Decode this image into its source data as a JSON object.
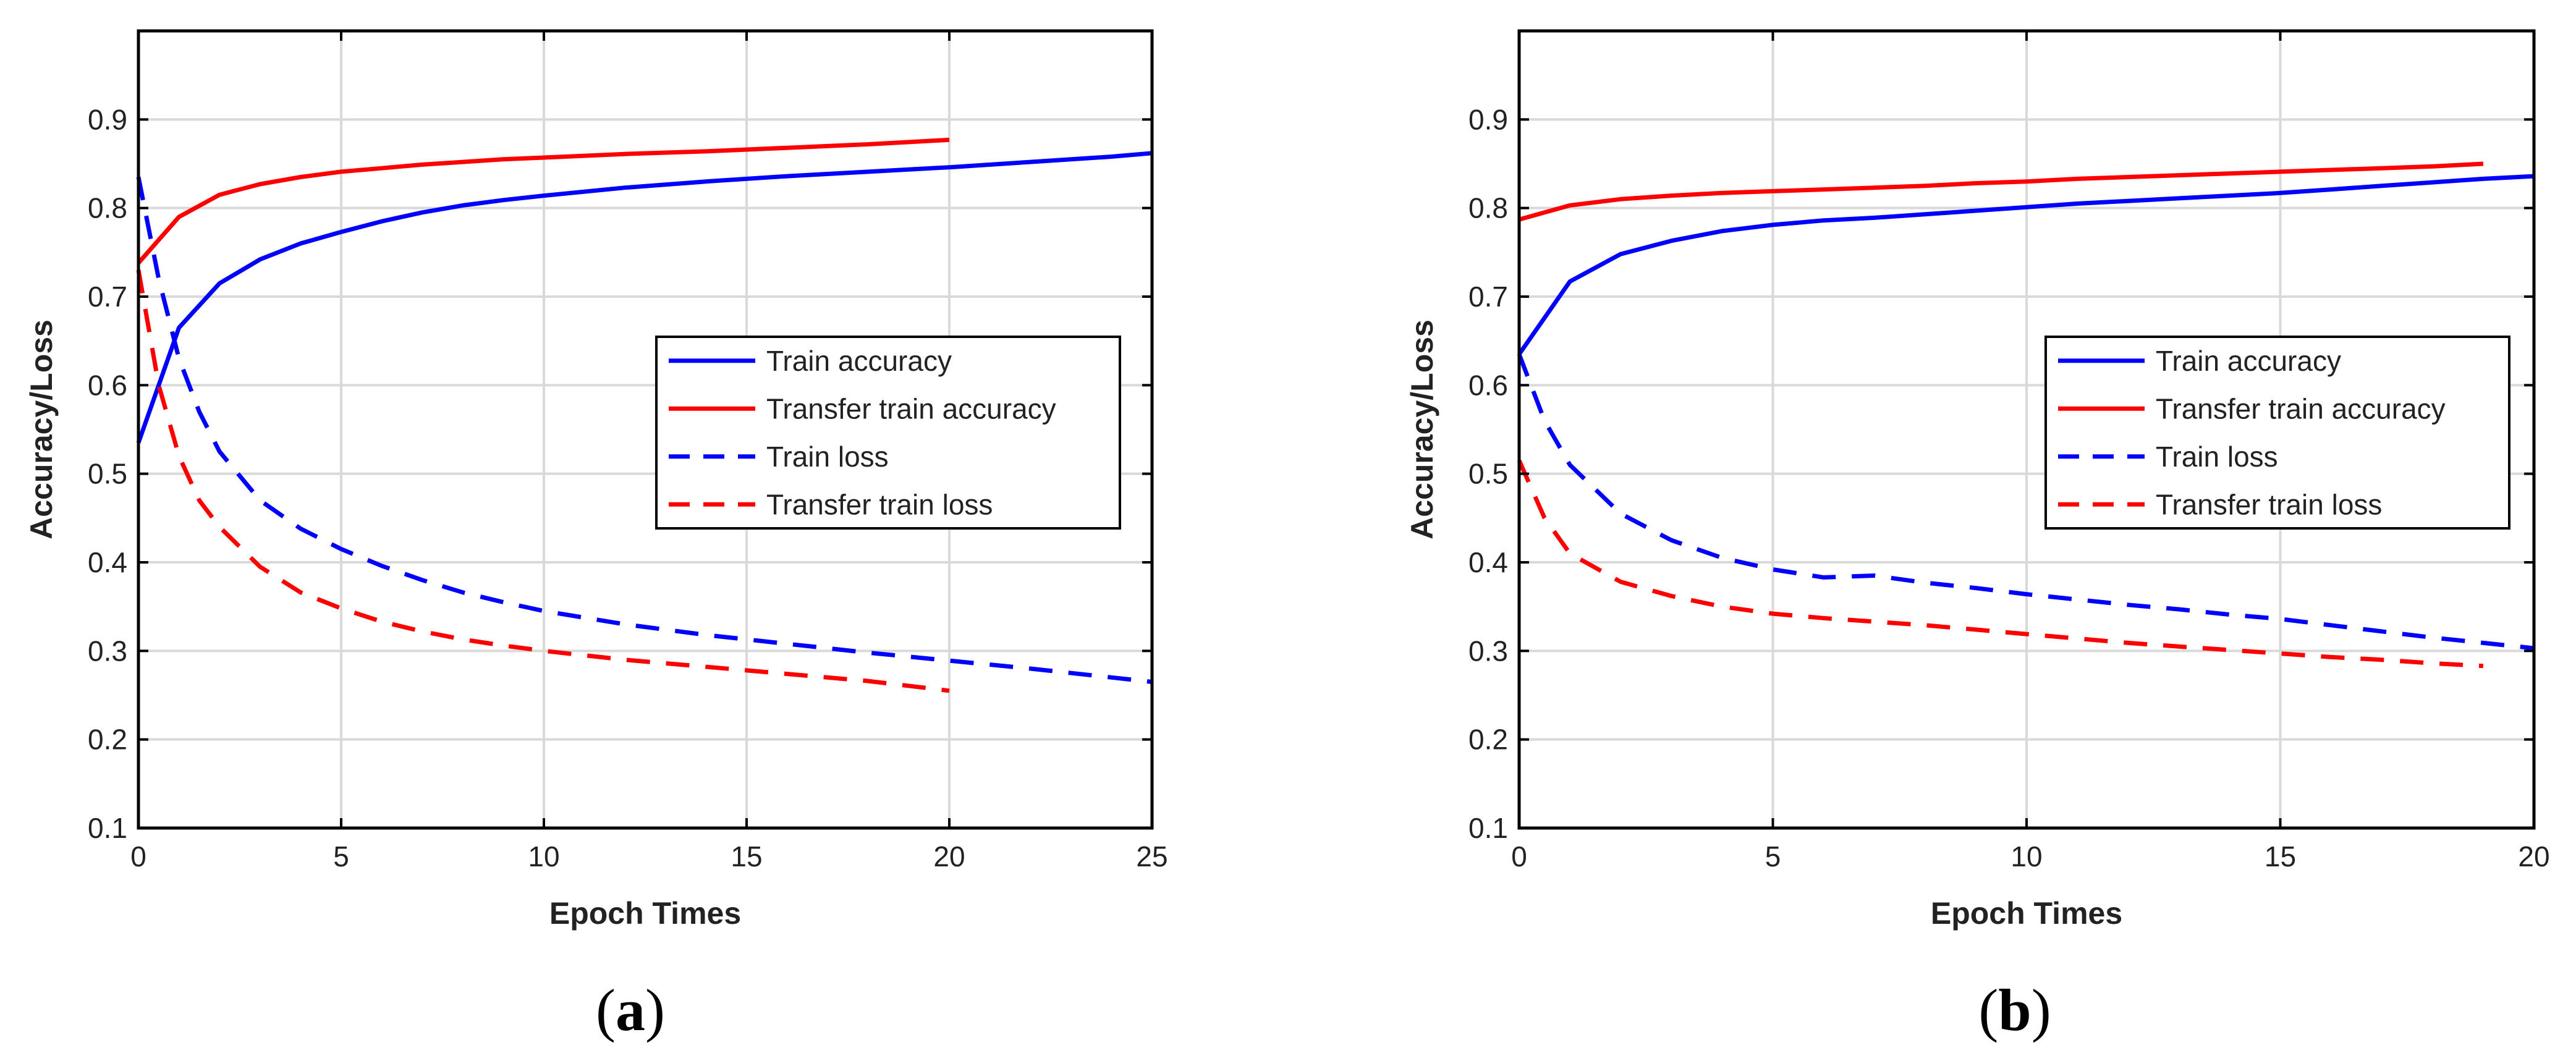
{
  "figure": {
    "captions": [
      "a",
      "b"
    ]
  },
  "colors": {
    "train": "#0000ff",
    "transfer": "#ff0000",
    "grid": "#d9d9d9",
    "axis": "#000000"
  },
  "chart_data": [
    {
      "type": "line",
      "panel": "a",
      "xlabel": "Epoch Times",
      "ylabel": "Accuracy/Loss",
      "xlim": [
        0,
        25
      ],
      "ylim": [
        0.1,
        1.0
      ],
      "xticks": [
        0,
        5,
        10,
        15,
        20,
        25
      ],
      "yticks": [
        0.1,
        0.2,
        0.3,
        0.4,
        0.5,
        0.6,
        0.7,
        0.8,
        0.9
      ],
      "grid": true,
      "legend_position": "center-right",
      "series": [
        {
          "name": "Train accuracy",
          "color": "#0000ff",
          "style": "solid",
          "x": [
            0,
            1,
            2,
            3,
            4,
            5,
            6,
            7,
            8,
            9,
            10,
            12,
            14,
            16,
            18,
            20,
            22,
            24,
            25
          ],
          "y": [
            0.535,
            0.665,
            0.715,
            0.742,
            0.76,
            0.773,
            0.785,
            0.795,
            0.803,
            0.809,
            0.814,
            0.823,
            0.83,
            0.836,
            0.841,
            0.846,
            0.852,
            0.858,
            0.862
          ]
        },
        {
          "name": "Transfer train accuracy",
          "color": "#ff0000",
          "style": "solid",
          "x": [
            0,
            1,
            2,
            3,
            4,
            5,
            6,
            7,
            8,
            9,
            10,
            12,
            14,
            16,
            18,
            20
          ],
          "y": [
            0.738,
            0.79,
            0.815,
            0.827,
            0.835,
            0.841,
            0.845,
            0.849,
            0.852,
            0.855,
            0.857,
            0.861,
            0.864,
            0.868,
            0.872,
            0.877
          ]
        },
        {
          "name": "Train loss",
          "color": "#0000ff",
          "style": "dashed",
          "x": [
            0,
            0.5,
            1,
            1.5,
            2,
            3,
            4,
            5,
            6,
            7,
            8,
            9,
            10,
            12,
            14,
            16,
            18,
            20,
            22,
            24,
            25
          ],
          "y": [
            0.835,
            0.72,
            0.63,
            0.57,
            0.525,
            0.47,
            0.438,
            0.415,
            0.396,
            0.38,
            0.366,
            0.355,
            0.345,
            0.33,
            0.318,
            0.308,
            0.298,
            0.289,
            0.28,
            0.27,
            0.265
          ]
        },
        {
          "name": "Transfer train loss",
          "color": "#ff0000",
          "style": "dashed",
          "x": [
            0,
            0.5,
            1,
            1.5,
            2,
            3,
            4,
            5,
            6,
            7,
            8,
            9,
            10,
            12,
            14,
            16,
            18,
            20
          ],
          "y": [
            0.73,
            0.6,
            0.52,
            0.47,
            0.44,
            0.395,
            0.366,
            0.348,
            0.333,
            0.322,
            0.313,
            0.306,
            0.3,
            0.29,
            0.282,
            0.274,
            0.266,
            0.255
          ]
        }
      ]
    },
    {
      "type": "line",
      "panel": "b",
      "xlabel": "Epoch Times",
      "ylabel": "Accuracy/Loss",
      "xlim": [
        0,
        20
      ],
      "ylim": [
        0.1,
        1.0
      ],
      "xticks": [
        0,
        5,
        10,
        15,
        20
      ],
      "yticks": [
        0.1,
        0.2,
        0.3,
        0.4,
        0.5,
        0.6,
        0.7,
        0.8,
        0.9
      ],
      "grid": true,
      "legend_position": "center-right",
      "series": [
        {
          "name": "Train accuracy",
          "color": "#0000ff",
          "style": "solid",
          "x": [
            0,
            1,
            2,
            3,
            4,
            5,
            6,
            7,
            8,
            9,
            10,
            11,
            12,
            13,
            14,
            15,
            16,
            17,
            18,
            19,
            20
          ],
          "y": [
            0.635,
            0.717,
            0.748,
            0.763,
            0.774,
            0.781,
            0.786,
            0.789,
            0.793,
            0.797,
            0.801,
            0.805,
            0.808,
            0.811,
            0.814,
            0.817,
            0.821,
            0.825,
            0.829,
            0.833,
            0.836
          ]
        },
        {
          "name": "Transfer train accuracy",
          "color": "#ff0000",
          "style": "solid",
          "x": [
            0,
            1,
            2,
            3,
            4,
            5,
            6,
            7,
            8,
            9,
            10,
            11,
            12,
            13,
            14,
            15,
            16,
            17,
            18,
            19
          ],
          "y": [
            0.787,
            0.803,
            0.81,
            0.814,
            0.817,
            0.819,
            0.821,
            0.823,
            0.825,
            0.828,
            0.83,
            0.833,
            0.835,
            0.837,
            0.839,
            0.841,
            0.843,
            0.845,
            0.847,
            0.85
          ]
        },
        {
          "name": "Train loss",
          "color": "#0000ff",
          "style": "dashed",
          "x": [
            0,
            0.5,
            1,
            2,
            3,
            4,
            5,
            6,
            7,
            8,
            9,
            10,
            11,
            12,
            13,
            14,
            15,
            16,
            17,
            18,
            19,
            20
          ],
          "y": [
            0.635,
            0.56,
            0.51,
            0.455,
            0.425,
            0.405,
            0.392,
            0.383,
            0.385,
            0.377,
            0.371,
            0.364,
            0.358,
            0.352,
            0.347,
            0.341,
            0.336,
            0.329,
            0.322,
            0.315,
            0.309,
            0.303
          ]
        },
        {
          "name": "Transfer train loss",
          "color": "#ff0000",
          "style": "dashed",
          "x": [
            0,
            0.5,
            1,
            2,
            3,
            4,
            5,
            6,
            7,
            8,
            9,
            10,
            11,
            12,
            13,
            14,
            15,
            16,
            17,
            18,
            19
          ],
          "y": [
            0.515,
            0.45,
            0.41,
            0.378,
            0.362,
            0.35,
            0.342,
            0.337,
            0.333,
            0.329,
            0.324,
            0.319,
            0.314,
            0.309,
            0.305,
            0.301,
            0.297,
            0.293,
            0.29,
            0.286,
            0.283
          ]
        }
      ]
    }
  ]
}
